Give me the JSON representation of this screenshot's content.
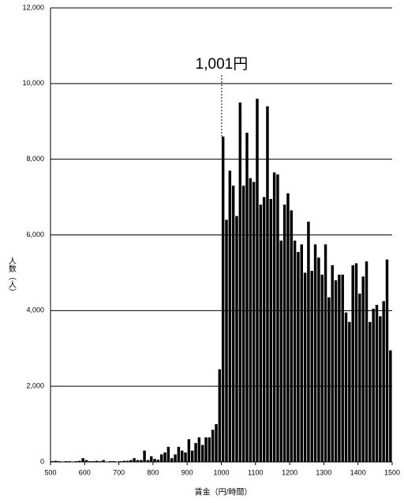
{
  "chart_data": {
    "type": "histogram",
    "xlabel": "賃金（円/時間）",
    "ylabel": "人数（人）",
    "bins": [
      500,
      510,
      520,
      530,
      540,
      550,
      560,
      570,
      580,
      590,
      600,
      610,
      620,
      630,
      640,
      650,
      660,
      670,
      680,
      690,
      700,
      710,
      720,
      730,
      740,
      750,
      760,
      770,
      780,
      790,
      800,
      810,
      820,
      830,
      840,
      850,
      860,
      870,
      880,
      890,
      900,
      910,
      920,
      930,
      940,
      950,
      960,
      970,
      980,
      990,
      1000,
      1010,
      1020,
      1030,
      1040,
      1050,
      1060,
      1070,
      1080,
      1090,
      1100,
      1110,
      1120,
      1130,
      1140,
      1150,
      1160,
      1170,
      1180,
      1190,
      1200,
      1210,
      1220,
      1230,
      1240,
      1250,
      1260,
      1270,
      1280,
      1290,
      1300,
      1310,
      1320,
      1330,
      1340,
      1350,
      1360,
      1370,
      1380,
      1390,
      1400,
      1410,
      1420,
      1430,
      1440,
      1450,
      1460,
      1470,
      1480,
      1490,
      1500
    ],
    "values": [
      20,
      30,
      20,
      10,
      20,
      20,
      10,
      20,
      30,
      100,
      50,
      20,
      20,
      30,
      20,
      50,
      10,
      20,
      20,
      10,
      20,
      30,
      30,
      50,
      100,
      50,
      50,
      300,
      50,
      150,
      80,
      60,
      200,
      250,
      400,
      100,
      200,
      400,
      300,
      250,
      600,
      300,
      500,
      650,
      450,
      650,
      650,
      850,
      1000,
      2450,
      8600,
      6400,
      7700,
      7300,
      6500,
      9500,
      7300,
      8700,
      7500,
      7400,
      9600,
      6800,
      7000,
      9400,
      6950,
      7650,
      7600,
      5850,
      6800,
      7100,
      6650,
      5850,
      5550,
      5750,
      5000,
      6350,
      5050,
      5750,
      5400,
      4950,
      5750,
      4350,
      5200,
      4800,
      4950,
      4950,
      3950,
      3700,
      5200,
      5250,
      4450,
      4900,
      5300,
      3700,
      4050,
      4150,
      3850,
      4250,
      5350,
      2950
    ],
    "color": "#000000",
    "annotation": {
      "x": 1001,
      "label": "1,001円"
    },
    "xlim": [
      500,
      1500
    ],
    "xticks": [
      500,
      600,
      700,
      800,
      900,
      1000,
      1100,
      1200,
      1300,
      1400,
      1500
    ],
    "ylim": [
      0,
      12000
    ],
    "yticks": [
      0,
      {
        "value": 2000,
        "label": "2,000"
      },
      {
        "value": 4000,
        "label": "4,000"
      },
      {
        "value": 6000,
        "label": "6,000"
      },
      {
        "value": 8000,
        "label": "8,000"
      },
      {
        "value": 10000,
        "label": "10,000"
      },
      {
        "value": 12000,
        "label": "12,000"
      }
    ],
    "grid": true
  }
}
